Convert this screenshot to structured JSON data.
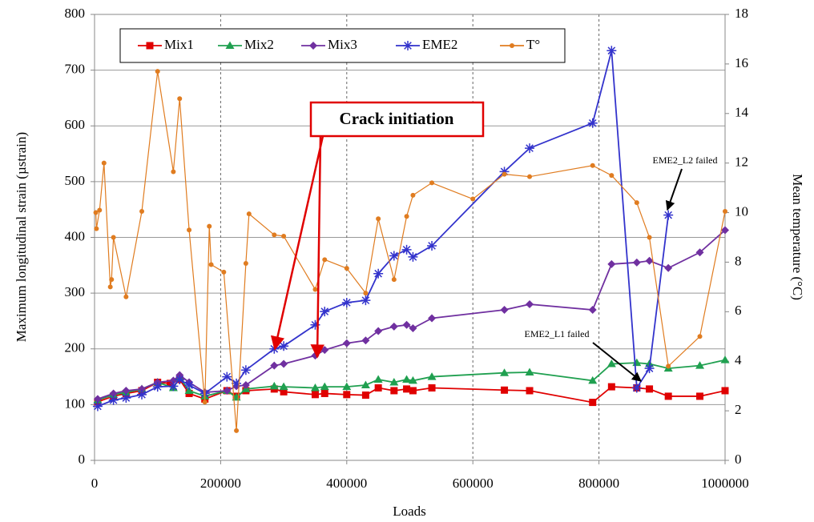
{
  "chart_data": {
    "type": "line",
    "xlabel": "Loads",
    "ylabel": "Maximum longitudinal strain (µstrain)",
    "y2label": "Mean temperature (°C)",
    "xlim": [
      0,
      1000000
    ],
    "xticks": [
      0,
      200000,
      400000,
      600000,
      800000,
      1000000
    ],
    "ylim": [
      0,
      800
    ],
    "yticks": [
      0,
      100,
      200,
      300,
      400,
      500,
      600,
      700,
      800
    ],
    "y2lim": [
      0,
      18
    ],
    "y2ticks": [
      0,
      2,
      4,
      6,
      8,
      10,
      12,
      14,
      16,
      18
    ],
    "grid": true,
    "legend": "top",
    "annotations": [
      "Crack initiation",
      "EME2_L2 failed",
      "EME2_L1 failed"
    ],
    "series": [
      {
        "name": "Mix1",
        "color": "#e00000",
        "marker": "square",
        "x": [
          5000,
          30000,
          50000,
          75000,
          100000,
          120000,
          135000,
          150000,
          175000,
          210000,
          225000,
          240000,
          285000,
          300000,
          350000,
          365000,
          400000,
          430000,
          450000,
          475000,
          495000,
          505000,
          535000,
          650000,
          690000,
          790000,
          820000,
          860000,
          880000,
          910000,
          960000,
          1000000
        ],
        "values": [
          105,
          115,
          120,
          125,
          140,
          138,
          145,
          120,
          110,
          125,
          115,
          125,
          128,
          123,
          118,
          120,
          118,
          117,
          130,
          125,
          128,
          125,
          130,
          126,
          125,
          104,
          132,
          130,
          128,
          115,
          115,
          125
        ]
      },
      {
        "name": "Mix2",
        "color": "#20a050",
        "marker": "triangle",
        "x": [
          5000,
          30000,
          50000,
          75000,
          100000,
          125000,
          135000,
          150000,
          175000,
          210000,
          225000,
          240000,
          285000,
          300000,
          350000,
          365000,
          400000,
          430000,
          450000,
          475000,
          495000,
          505000,
          535000,
          650000,
          690000,
          790000,
          820000,
          860000,
          880000,
          910000,
          960000,
          1000000
        ],
        "values": [
          108,
          118,
          122,
          128,
          140,
          130,
          148,
          125,
          115,
          125,
          113,
          128,
          133,
          132,
          130,
          132,
          132,
          135,
          145,
          140,
          145,
          143,
          150,
          157,
          158,
          143,
          173,
          175,
          173,
          165,
          170,
          180
        ]
      },
      {
        "name": "Mix3",
        "color": "#7030a0",
        "marker": "diamond",
        "x": [
          5000,
          30000,
          50000,
          75000,
          100000,
          125000,
          135000,
          150000,
          175000,
          210000,
          225000,
          240000,
          285000,
          300000,
          350000,
          365000,
          400000,
          430000,
          450000,
          475000,
          495000,
          505000,
          535000,
          650000,
          690000,
          790000,
          820000,
          860000,
          880000,
          910000,
          960000,
          1000000
        ],
        "values": [
          110,
          120,
          125,
          128,
          140,
          143,
          153,
          140,
          122,
          125,
          133,
          135,
          170,
          173,
          188,
          198,
          210,
          215,
          232,
          240,
          243,
          237,
          255,
          270,
          280,
          270,
          352,
          355,
          358,
          345,
          373,
          413
        ]
      },
      {
        "name": "EME2",
        "color": "#3333cc",
        "marker": "asterisk",
        "x": [
          5000,
          30000,
          50000,
          75000,
          100000,
          125000,
          135000,
          150000,
          175000,
          210000,
          225000,
          240000,
          285000,
          300000,
          350000,
          365000,
          400000,
          430000,
          450000,
          475000,
          495000,
          505000,
          535000,
          650000,
          690000,
          790000,
          820000,
          860000,
          880000,
          910000
        ],
        "values": [
          97,
          108,
          112,
          118,
          132,
          133,
          145,
          135,
          120,
          150,
          138,
          162,
          200,
          205,
          243,
          267,
          283,
          287,
          335,
          367,
          378,
          365,
          385,
          518,
          560,
          605,
          735,
          130,
          165,
          440
        ]
      },
      {
        "name": "T°",
        "color": "#e07c20",
        "marker": "circle",
        "axis": "y2",
        "x": [
          2000,
          3000,
          8000,
          15000,
          25000,
          27000,
          30000,
          50000,
          75000,
          100000,
          125000,
          135000,
          150000,
          175000,
          182000,
          185000,
          205000,
          225000,
          240000,
          245000,
          285000,
          300000,
          350000,
          365000,
          400000,
          430000,
          450000,
          475000,
          495000,
          505000,
          535000,
          600000,
          650000,
          690000,
          790000,
          820000,
          860000,
          880000,
          910000,
          960000,
          1000000
        ],
        "values": [
          10.0,
          9.35,
          10.1,
          12.0,
          7.0,
          7.3,
          9.0,
          6.6,
          10.05,
          15.7,
          11.65,
          14.6,
          9.3,
          2.35,
          9.45,
          7.9,
          7.6,
          1.2,
          7.95,
          9.95,
          9.1,
          9.05,
          6.9,
          8.1,
          7.75,
          6.75,
          9.75,
          7.3,
          9.85,
          10.7,
          11.2,
          10.55,
          11.55,
          11.45,
          11.9,
          11.5,
          10.4,
          9.0,
          3.8,
          5.0,
          10.05
        ]
      }
    ]
  }
}
